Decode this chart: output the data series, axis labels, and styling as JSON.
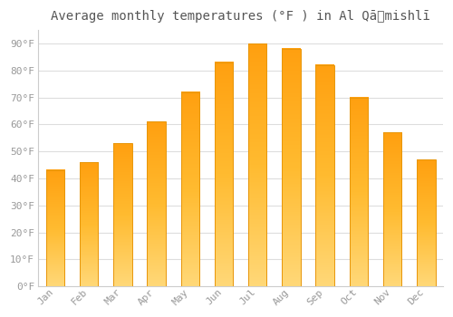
{
  "title": "Average monthly temperatures (°F ) in Al Qāʺmishlī",
  "months": [
    "Jan",
    "Feb",
    "Mar",
    "Apr",
    "May",
    "Jun",
    "Jul",
    "Aug",
    "Sep",
    "Oct",
    "Nov",
    "Dec"
  ],
  "values": [
    43,
    46,
    53,
    61,
    72,
    83,
    90,
    88,
    82,
    70,
    57,
    47
  ],
  "bar_color_top": "#FFA500",
  "bar_color_bottom": "#FFD070",
  "bar_edge_color": "#E8960A",
  "background_color": "#ffffff",
  "grid_color": "#dddddd",
  "ylim": [
    0,
    95
  ],
  "yticks": [
    0,
    10,
    20,
    30,
    40,
    50,
    60,
    70,
    80,
    90
  ],
  "ytick_labels": [
    "0°F",
    "10°F",
    "20°F",
    "30°F",
    "40°F",
    "50°F",
    "60°F",
    "70°F",
    "80°F",
    "90°F"
  ],
  "title_fontsize": 10,
  "tick_fontsize": 8,
  "tick_color": "#999999",
  "bar_width": 0.55
}
